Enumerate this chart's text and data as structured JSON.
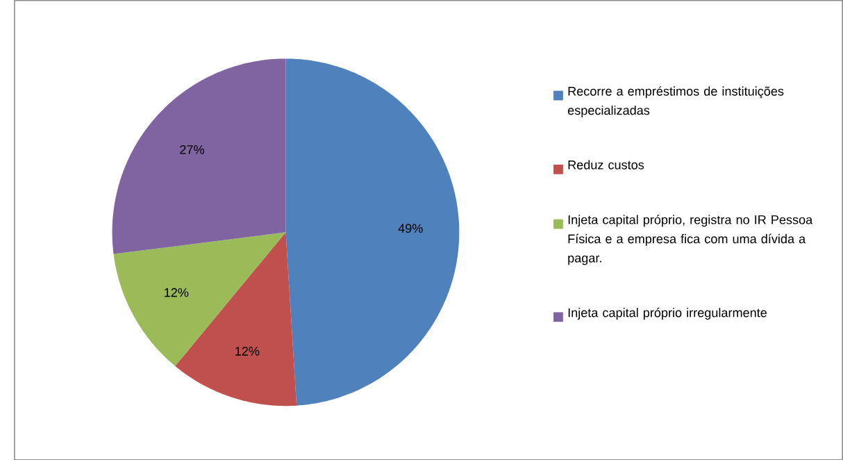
{
  "chart_data": {
    "type": "pie",
    "categories": [
      "Recorre a empréstimos de instituições especializadas",
      "Reduz custos",
      "Injeta capital próprio, registra no IR Pessoa Física e a empresa fica com uma dívida a pagar.",
      "Injeta capital próprio irregularmente"
    ],
    "values": [
      49,
      12,
      12,
      27
    ],
    "value_labels": [
      "49%",
      "12%",
      "12%",
      "27%"
    ],
    "colors": [
      "#4f81bd",
      "#c0504d",
      "#9bbb59",
      "#8064a2"
    ],
    "legend": "right"
  }
}
